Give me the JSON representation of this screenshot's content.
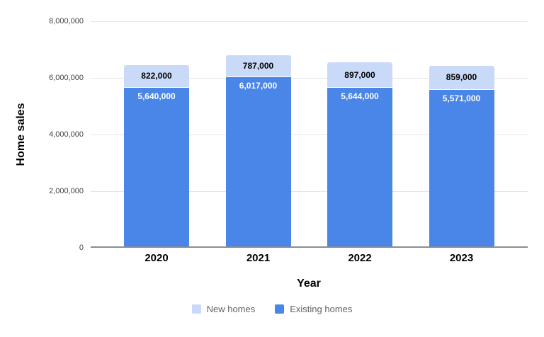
{
  "page": {
    "background": "#ffffff"
  },
  "chart_data": {
    "type": "bar",
    "stacked": true,
    "title": "",
    "xlabel": "Year",
    "ylabel": "Home sales",
    "categories": [
      "2020",
      "2021",
      "2022",
      "2023"
    ],
    "series": [
      {
        "name": "New homes",
        "color": "#c9daf8",
        "label_color": "#000000",
        "values": [
          822000,
          787000,
          897000,
          859000
        ],
        "value_labels": [
          "822,000",
          "787,000",
          "897,000",
          "859,000"
        ]
      },
      {
        "name": "Existing homes",
        "color": "#4a86e8",
        "label_color": "#ffffff",
        "values": [
          5640000,
          6017000,
          5644000,
          5571000
        ],
        "value_labels": [
          "5,640,000",
          "6,017,000",
          "5,644,000",
          "5,571,000"
        ]
      }
    ],
    "totals": [
      6462000,
      6804000,
      6541000,
      6430000
    ],
    "ylim": [
      0,
      8000000
    ],
    "yticks": [
      0,
      2000000,
      4000000,
      6000000,
      8000000
    ],
    "ytick_labels": [
      "0",
      "2,000,000",
      "4,000,000",
      "6,000,000",
      "8,000,000"
    ],
    "grid": true,
    "gridline_color": "#e6e6e6",
    "axis_line_color": "#8a8f94",
    "tick_label_color": "#444444",
    "legend_position": "bottom",
    "legend_text_color": "#5f6368"
  }
}
